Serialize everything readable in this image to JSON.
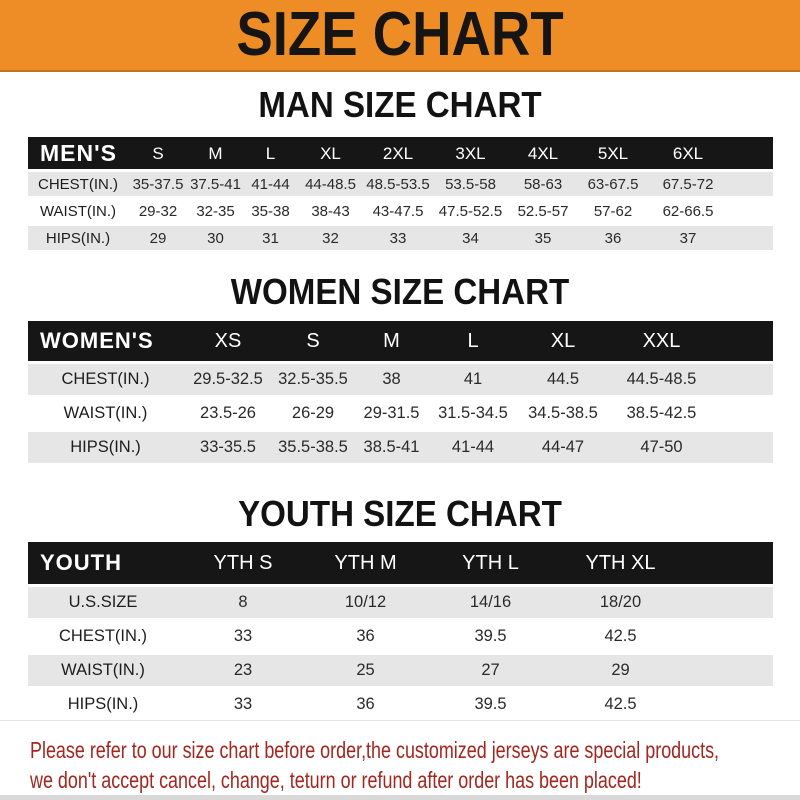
{
  "banner": {
    "title": "SIZE CHART"
  },
  "colors": {
    "banner_orange": "#ee8c26",
    "header_black": "#161616",
    "row_stripe_gray": "#e6e6e7",
    "note_red": "#a3261f"
  },
  "sections": [
    {
      "title": "MAN SIZE CHART",
      "table": {
        "corner": "MEN'S",
        "columns": [
          "S",
          "M",
          "L",
          "XL",
          "2XL",
          "3XL",
          "4XL",
          "5XL",
          "6XL"
        ],
        "rows": [
          {
            "label": "CHEST(IN.)",
            "values": [
              "35-37.5",
              "37.5-41",
              "41-44",
              "44-48.5",
              "48.5-53.5",
              "53.5-58",
              "58-63",
              "63-67.5",
              "67.5-72"
            ]
          },
          {
            "label": "WAIST(IN.)",
            "values": [
              "29-32",
              "32-35",
              "35-38",
              "38-43",
              "43-47.5",
              "47.5-52.5",
              "52.5-57",
              "57-62",
              "62-66.5"
            ]
          },
          {
            "label": "HIPS(IN.)",
            "values": [
              "29",
              "30",
              "31",
              "32",
              "33",
              "34",
              "35",
              "36",
              "37"
            ]
          }
        ]
      }
    },
    {
      "title": "WOMEN SIZE CHART",
      "table": {
        "corner": "WOMEN'S",
        "columns": [
          "XS",
          "S",
          "M",
          "L",
          "XL",
          "XXL"
        ],
        "rows": [
          {
            "label": "CHEST(IN.)",
            "values": [
              "29.5-32.5",
              "32.5-35.5",
              "38",
              "41",
              "44.5",
              "44.5-48.5"
            ]
          },
          {
            "label": "WAIST(IN.)",
            "values": [
              "23.5-26",
              "26-29",
              "29-31.5",
              "31.5-34.5",
              "34.5-38.5",
              "38.5-42.5"
            ]
          },
          {
            "label": "HIPS(IN.)",
            "values": [
              "33-35.5",
              "35.5-38.5",
              "38.5-41",
              "41-44",
              "44-47",
              "47-50"
            ]
          }
        ]
      }
    },
    {
      "title": "YOUTH SIZE CHART",
      "table": {
        "corner": "YOUTH",
        "columns": [
          "YTH S",
          "YTH M",
          "YTH L",
          "YTH XL"
        ],
        "rows": [
          {
            "label": "U.S.SIZE",
            "values": [
              "8",
              "10/12",
              "14/16",
              "18/20"
            ]
          },
          {
            "label": "CHEST(IN.)",
            "values": [
              "33",
              "36",
              "39.5",
              "42.5"
            ]
          },
          {
            "label": "WAIST(IN.)",
            "values": [
              "23",
              "25",
              "27",
              "29"
            ]
          },
          {
            "label": "HIPS(IN.)",
            "values": [
              "33",
              "36",
              "39.5",
              "42.5"
            ]
          }
        ]
      }
    }
  ],
  "note": {
    "line1": "Please refer to our size chart before order,the customized jerseys are special products,",
    "line2": "we don't accept cancel, change, teturn or refund after order has been placed!"
  }
}
